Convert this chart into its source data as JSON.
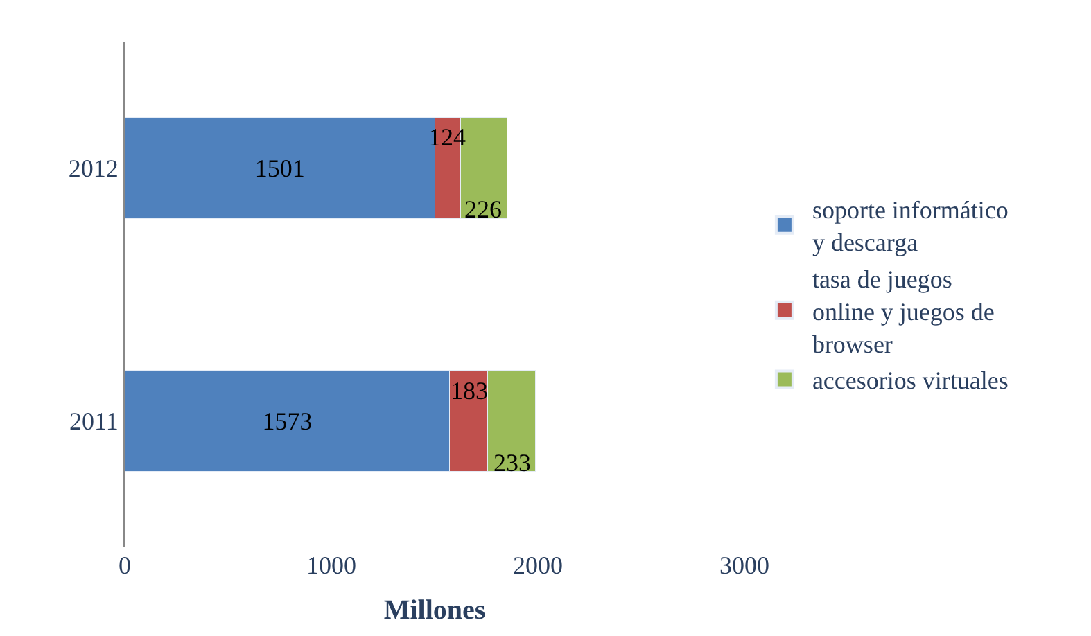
{
  "chart_data": {
    "type": "bar",
    "orientation": "horizontal",
    "stacked": true,
    "xlabel": "Millones",
    "categories": [
      "2012",
      "2011"
    ],
    "series": [
      {
        "name": "soporte informático y descarga",
        "color": "#4f81bd",
        "values": [
          1501,
          1573
        ]
      },
      {
        "name": "tasa de juegos online y juegos de browser",
        "color": "#c0504d",
        "values": [
          124,
          183
        ]
      },
      {
        "name": "accesorios virtuales",
        "color": "#9bbb59",
        "values": [
          226,
          233
        ]
      }
    ],
    "xlim": [
      0,
      3000
    ],
    "xticks": [
      0,
      1000,
      2000,
      3000
    ],
    "legend": "right",
    "data_labels": true
  }
}
